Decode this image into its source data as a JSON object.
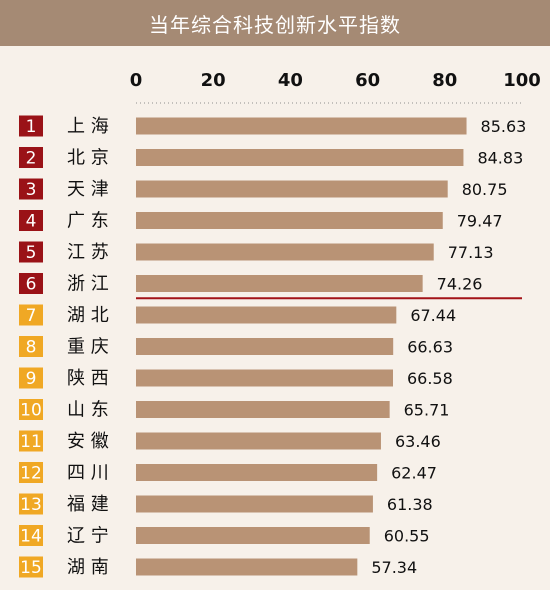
{
  "colors": {
    "header_bg": "#a58a74",
    "bar": "#b99375",
    "rank_top": "#9a1217",
    "rank_rest": "#f0a824",
    "divider": "#a31318",
    "axis_dots": "#8f8f8f"
  },
  "chart_data": {
    "type": "bar",
    "orientation": "horizontal",
    "title": "当年综合科技创新水平指数",
    "x_ticks": [
      "0",
      "20",
      "40",
      "60",
      "80",
      "100"
    ],
    "xlim": [
      0,
      100
    ],
    "ranks": [
      "1",
      "2",
      "3",
      "4",
      "5",
      "6",
      "7",
      "8",
      "9",
      "10",
      "11",
      "12",
      "13",
      "14",
      "15"
    ],
    "categories": [
      "上 海",
      "北 京",
      "天 津",
      "广 东",
      "江 苏",
      "浙 江",
      "湖 北",
      "重 庆",
      "陕 西",
      "山 东",
      "安 徽",
      "四 川",
      "福 建",
      "辽 宁",
      "湖 南"
    ],
    "values": [
      85.63,
      84.83,
      80.75,
      79.47,
      77.13,
      74.26,
      67.44,
      66.63,
      66.58,
      65.71,
      63.46,
      62.47,
      61.38,
      60.55,
      57.34
    ],
    "value_labels": [
      "85.63",
      "84.83",
      "80.75",
      "79.47",
      "77.13",
      "74.26",
      "67.44",
      "66.63",
      "66.58",
      "65.71",
      "63.46",
      "62.47",
      "61.38",
      "60.55",
      "57.34"
    ],
    "highlight_divider_after_rank": 6
  }
}
